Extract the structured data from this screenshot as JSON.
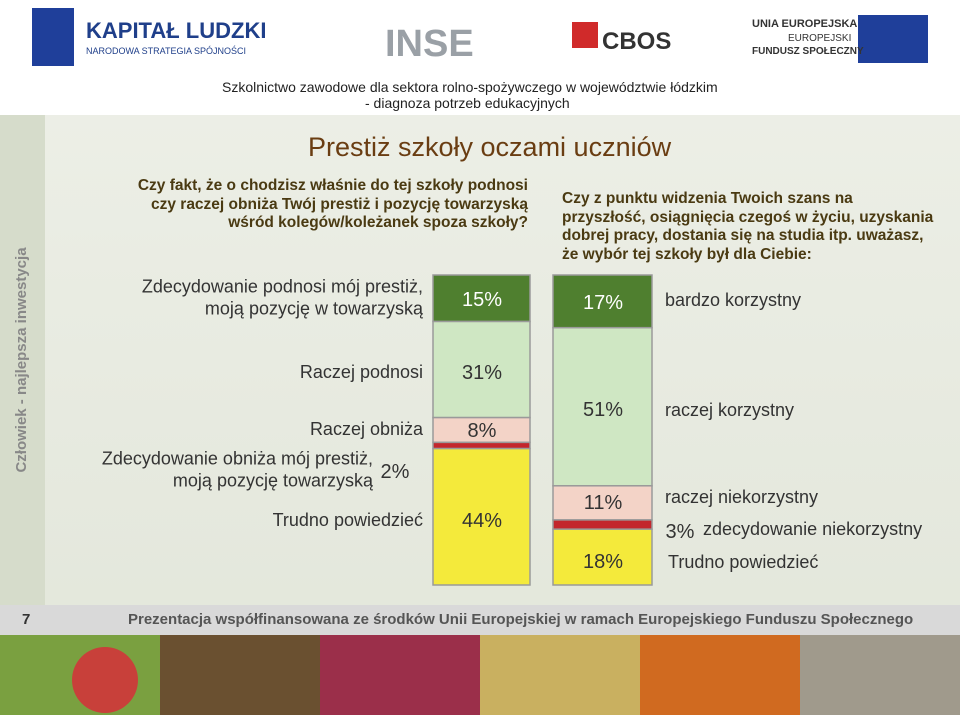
{
  "header": {
    "logos": [
      "KAPITAŁ LUDZKI",
      "NARODOWA STRATEGIA SPÓJNOŚCI",
      "INSE",
      "CBOS",
      "UNIA EUROPEJSKA",
      "EUROPEJSKI",
      "FUNDUSZ SPOŁECZNY"
    ],
    "project": [
      "Szkolnictwo zawodowe dla sektora rolno-spożywczego w województwie łódzkim",
      "- diagnoza potrzeb edukacyjnych"
    ]
  },
  "side_text": "Człowiek - najlepsza inwestycja",
  "title": "Prestiż szkoły oczami uczniów",
  "footer": {
    "page": "7",
    "text": "Prezentacja współfinansowana ze środków Unii Europejskiej w ramach Europejskiego Funduszu Społecznego"
  },
  "chart_data": [
    {
      "type": "bar",
      "stacked": true,
      "ylim": [
        0,
        100
      ],
      "subtitle": "Czy fakt, że o chodzisz właśnie do tej szkoły podnosi\nczy raczej obniża Twój prestiż i pozycję towarzyską\nwśród kolegów/koleżanek spoza szkoły?",
      "series": [
        {
          "name": "Zdecydowanie podnosi mój prestiż,\nmoją pozycję w towarzyską",
          "color": "#4f7f2f",
          "values": [
            15
          ],
          "value_labels": [
            "15%"
          ]
        },
        {
          "name": "Raczej podnosi",
          "color": "#cfe7c3",
          "values": [
            31
          ],
          "value_labels": [
            "31%"
          ]
        },
        {
          "name": "Raczej obniża",
          "color": "#f3d3c7",
          "values": [
            8
          ],
          "value_labels": [
            "8%"
          ]
        },
        {
          "name": "Zdecydowanie obniża mój prestiż,\nmoją pozycję towarzyską",
          "color": "#c3262c",
          "values": [
            2
          ],
          "value_labels": [
            "2%"
          ]
        },
        {
          "name": "Trudno powiedzieć",
          "color": "#f4ea3b",
          "values": [
            44
          ],
          "value_labels": [
            "44%"
          ]
        }
      ]
    },
    {
      "type": "bar",
      "stacked": true,
      "ylim": [
        0,
        100
      ],
      "subtitle": "Czy z punktu widzenia Twoich szans na\nprzyszłość, osiągnięcia czegoś w życiu, uzyskania\ndobrej pracy, dostania się na studia itp. uważasz,\nże wybór tej szkoły był dla Ciebie:",
      "series": [
        {
          "name": "bardzo korzystny",
          "color": "#4f7f2f",
          "values": [
            17
          ],
          "value_labels": [
            "17%"
          ]
        },
        {
          "name": "raczej korzystny",
          "color": "#cfe7c3",
          "values": [
            51
          ],
          "value_labels": [
            "51%"
          ]
        },
        {
          "name": "raczej niekorzystny",
          "color": "#f3d3c7",
          "values": [
            11
          ],
          "value_labels": [
            "11%"
          ]
        },
        {
          "name": "zdecydowanie niekorzystny",
          "color": "#c3262c",
          "values": [
            3
          ],
          "value_labels": [
            "3%"
          ]
        },
        {
          "name": "Trudno powiedzieć",
          "color": "#f4ea3b",
          "values": [
            18
          ],
          "value_labels": [
            "18%"
          ]
        }
      ]
    }
  ]
}
